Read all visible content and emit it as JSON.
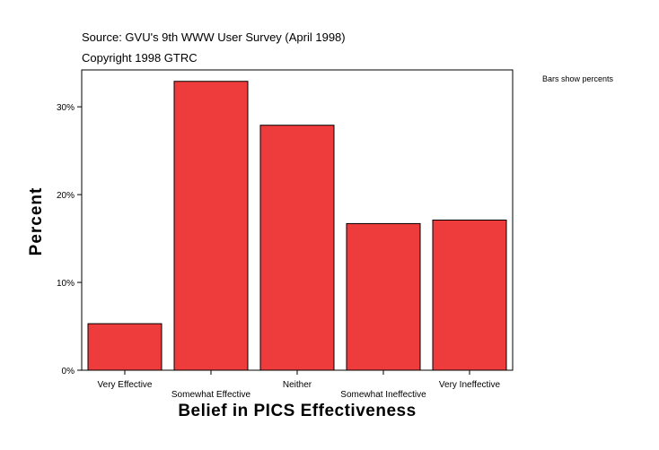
{
  "header": {
    "source": "Source: GVU's 9th WWW User Survey (April 1998)",
    "copyright": "Copyright 1998 GTRC"
  },
  "note": "Bars show percents",
  "chart_data": {
    "type": "bar",
    "categories": [
      "Very Effective",
      "Somewhat Effective",
      "Neither",
      "Somewhat Ineffective",
      "Very Ineffective"
    ],
    "values": [
      5.3,
      32.9,
      27.9,
      16.7,
      17.1
    ],
    "xlabel": "Belief in PICS Effectiveness",
    "ylabel": "Percent",
    "ylim": [
      0,
      34.2
    ],
    "yticks": [
      0,
      10,
      20,
      30
    ],
    "ytick_labels": [
      "0%",
      "10%",
      "20%",
      "30%"
    ],
    "bar_color": "#ee3b3b",
    "grid": false,
    "legend": "none"
  }
}
